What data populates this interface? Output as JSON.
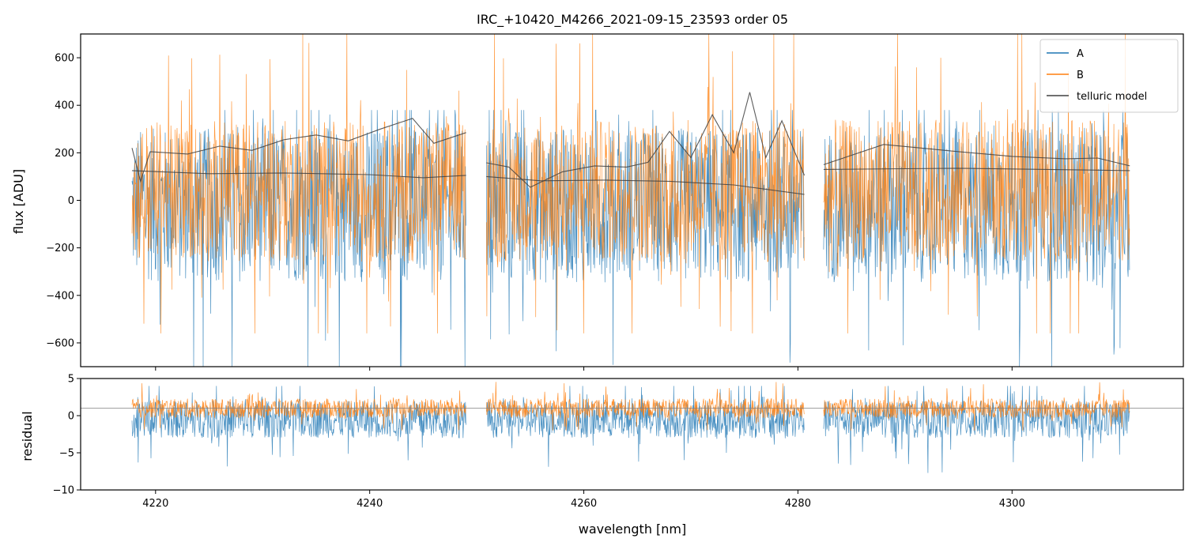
{
  "chart_data": [
    {
      "type": "line",
      "title": "IRC_+10420_M4266_2021-09-15_23593  order 05",
      "xlabel": "",
      "ylabel": "flux [ADU]",
      "xlim": [
        4213,
        4316
      ],
      "ylim": [
        -700,
        700
      ],
      "yticks": [
        -600,
        -400,
        -200,
        0,
        200,
        400,
        600
      ],
      "xticks": [
        4220,
        4240,
        4260,
        4280,
        4300
      ],
      "legend": "top-right",
      "segments": [
        [
          4217.8,
          4249.0
        ],
        [
          4250.9,
          4280.6
        ],
        [
          4282.4,
          4311.0
        ]
      ],
      "series": [
        {
          "name": "A",
          "color": "#1f77b4",
          "noise_range": [
            -700,
            380
          ]
        },
        {
          "name": "B",
          "color": "#ff7f0e",
          "noise_range": [
            -560,
            700
          ]
        },
        {
          "name": "telluric model",
          "color": "#404040",
          "upper": [
            [
              4217.8,
              220
            ],
            [
              4218.6,
              80
            ],
            [
              4219.5,
              205
            ],
            [
              4223,
              195
            ],
            [
              4226,
              228
            ],
            [
              4229,
              210
            ],
            [
              4232,
              255
            ],
            [
              4235,
              275
            ],
            [
              4238,
              250
            ],
            [
              4241,
              300
            ],
            [
              4244,
              345
            ],
            [
              4246,
              240
            ],
            [
              4249.0,
              285
            ],
            [
              4250.9,
              158
            ],
            [
              4253,
              140
            ],
            [
              4255,
              55
            ],
            [
              4258,
              120
            ],
            [
              4261,
              145
            ],
            [
              4264,
              140
            ],
            [
              4266,
              160
            ],
            [
              4268,
              290
            ],
            [
              4270,
              180
            ],
            [
              4272,
              360
            ],
            [
              4274,
              200
            ],
            [
              4275.5,
              455
            ],
            [
              4277,
              180
            ],
            [
              4278.5,
              335
            ],
            [
              4280.6,
              105
            ],
            [
              4282.4,
              150
            ],
            [
              4288,
              235
            ],
            [
              4295,
              205
            ],
            [
              4300,
              185
            ],
            [
              4305,
              175
            ],
            [
              4308,
              178
            ],
            [
              4311.0,
              145
            ]
          ],
          "lower": [
            [
              4217.8,
              125
            ],
            [
              4225,
              112
            ],
            [
              4232,
              115
            ],
            [
              4240,
              108
            ],
            [
              4245,
              95
            ],
            [
              4249.0,
              105
            ],
            [
              4250.9,
              100
            ],
            [
              4256,
              82
            ],
            [
              4262,
              85
            ],
            [
              4268,
              80
            ],
            [
              4274,
              65
            ],
            [
              4280.6,
              25
            ],
            [
              4282.4,
              130
            ],
            [
              4295,
              135
            ],
            [
              4311.0,
              125
            ]
          ]
        }
      ]
    },
    {
      "type": "line",
      "title": "",
      "xlabel": "wavelength [nm]",
      "ylabel": "residual",
      "xlim": [
        4213,
        4316
      ],
      "ylim": [
        -10,
        5
      ],
      "yticks": [
        -10,
        -5,
        0,
        5
      ],
      "xticks": [
        4220,
        4240,
        4260,
        4280,
        4300
      ],
      "xticklabels": [
        "4220",
        "4240",
        "4260",
        "4280",
        "4300"
      ],
      "reference_line": 1,
      "series": [
        {
          "name": "",
          "color": "#1f77b4",
          "noise_range": [
            -10,
            4
          ]
        },
        {
          "name": "",
          "color": "#ff7f0e",
          "noise_range": [
            -2,
            5
          ]
        }
      ]
    }
  ]
}
